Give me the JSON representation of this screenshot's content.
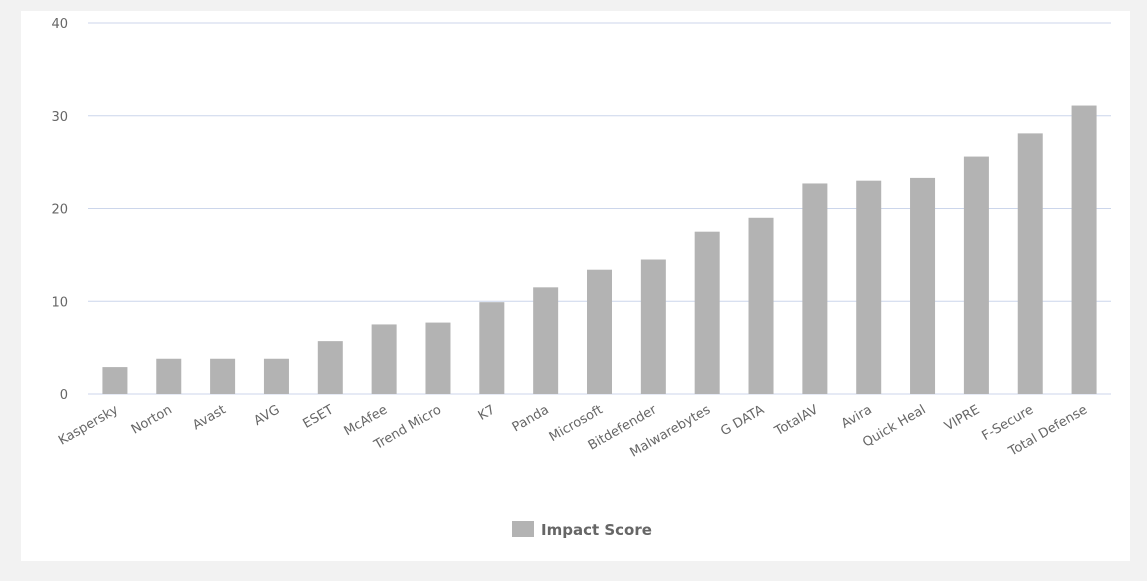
{
  "chart_data": {
    "type": "bar",
    "categories": [
      "Kaspersky",
      "Norton",
      "Avast",
      "AVG",
      "ESET",
      "McAfee",
      "Trend Micro",
      "K7",
      "Panda",
      "Microsoft",
      "Bitdefender",
      "Malwarebytes",
      "G DATA",
      "TotalAV",
      "Avira",
      "Quick Heal",
      "VIPRE",
      "F-Secure",
      "Total Defense"
    ],
    "series": [
      {
        "name": "Impact Score",
        "color": "#b3b3b3",
        "values": [
          2.9,
          3.8,
          3.8,
          3.8,
          5.7,
          7.5,
          7.7,
          9.9,
          11.5,
          13.4,
          14.5,
          17.5,
          19,
          22.7,
          23,
          23.3,
          25.6,
          28.1,
          31.1
        ]
      }
    ],
    "ylim": [
      0,
      40
    ],
    "yticks": [
      0,
      10,
      20,
      30,
      40
    ],
    "grid": true
  }
}
